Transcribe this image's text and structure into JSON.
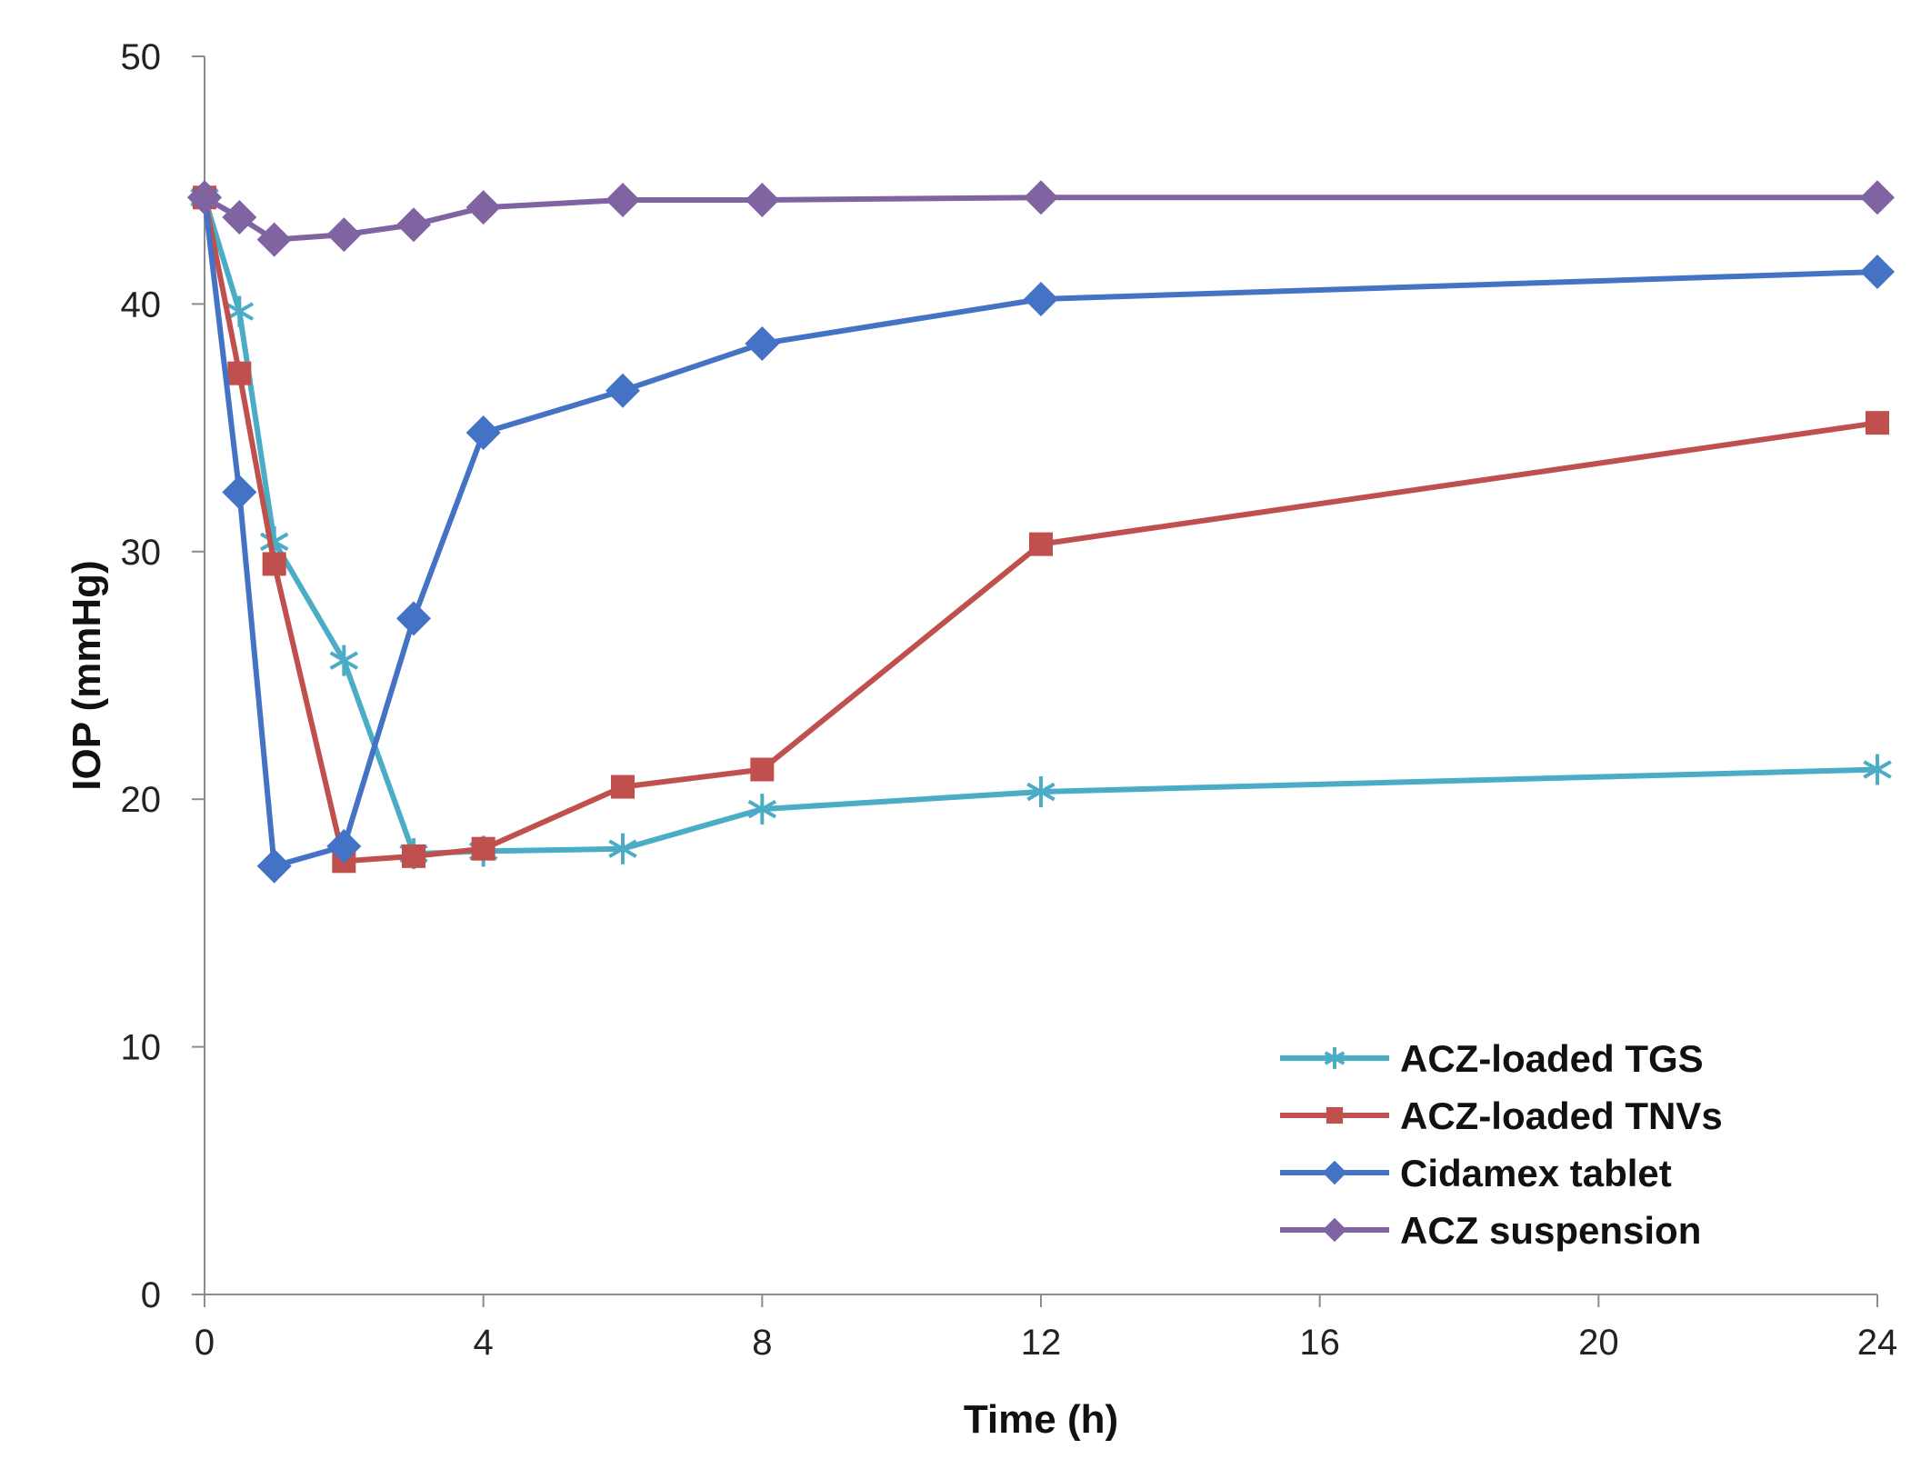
{
  "chart_data": {
    "type": "line",
    "title": "",
    "xlabel": "Time (h)",
    "ylabel": "IOP (mmHg)",
    "xlim": [
      0,
      24
    ],
    "ylim": [
      0,
      50
    ],
    "xticks": [
      0,
      4,
      8,
      12,
      16,
      20,
      24
    ],
    "yticks": [
      0,
      10,
      20,
      30,
      40,
      50
    ],
    "grid": false,
    "legend_position": "bottom-right",
    "series": [
      {
        "name": "ACZ-loaded TGS",
        "color": "#4BACC6",
        "marker": "asterisk",
        "x": [
          0,
          0.5,
          1,
          2,
          3,
          4,
          6,
          8,
          12,
          24
        ],
        "y": [
          44.3,
          39.7,
          30.4,
          25.6,
          17.8,
          17.9,
          18.0,
          19.6,
          20.3,
          21.2
        ]
      },
      {
        "name": "ACZ-loaded TNVs",
        "color": "#C0504D",
        "marker": "square",
        "x": [
          0,
          0.5,
          1,
          2,
          3,
          4,
          6,
          8,
          12,
          24
        ],
        "y": [
          44.3,
          37.2,
          29.5,
          17.5,
          17.7,
          18.0,
          20.5,
          21.2,
          30.3,
          35.2
        ]
      },
      {
        "name": "Cidamex tablet",
        "color": "#4472C4",
        "marker": "diamond",
        "x": [
          0,
          0.5,
          1,
          2,
          3,
          4,
          6,
          8,
          12,
          24
        ],
        "y": [
          44.3,
          32.4,
          17.3,
          18.1,
          27.3,
          34.8,
          36.5,
          38.4,
          40.2,
          41.3
        ]
      },
      {
        "name": "ACZ suspension",
        "color": "#8064A2",
        "marker": "diamond",
        "x": [
          0,
          0.5,
          1,
          2,
          3,
          4,
          6,
          8,
          12,
          24
        ],
        "y": [
          44.3,
          43.5,
          42.6,
          42.8,
          43.2,
          43.9,
          44.2,
          44.2,
          44.3,
          44.3
        ]
      }
    ]
  }
}
